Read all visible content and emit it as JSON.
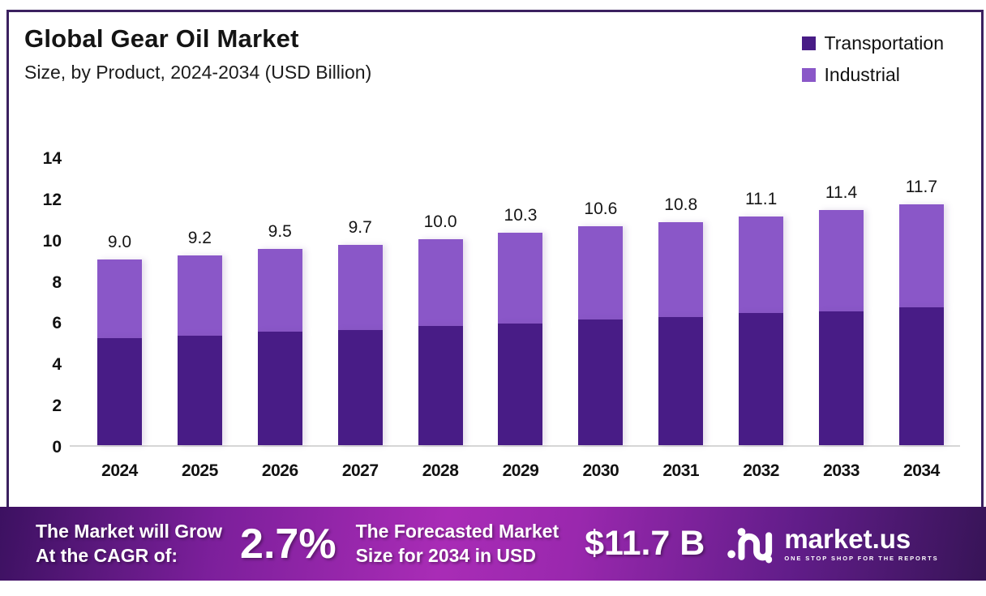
{
  "header": {
    "title": "Global Gear Oil Market",
    "subtitle": "Size, by Product, 2024-2034 (USD Billion)"
  },
  "legend": {
    "items": [
      {
        "label": "Transportation",
        "color": "#481c86"
      },
      {
        "label": "Industrial",
        "color": "#8a57c8"
      }
    ]
  },
  "chart_data": {
    "type": "bar",
    "stacked": true,
    "title": "Global Gear Oil Market",
    "subtitle": "Size, by Product, 2024-2034 (USD Billion)",
    "unit": "USD Billion",
    "categories": [
      "2024",
      "2025",
      "2026",
      "2027",
      "2028",
      "2029",
      "2030",
      "2031",
      "2032",
      "2033",
      "2034"
    ],
    "series": [
      {
        "name": "Transportation",
        "color": "#481c86",
        "values": [
          5.2,
          5.3,
          5.5,
          5.6,
          5.8,
          5.9,
          6.1,
          6.2,
          6.4,
          6.5,
          6.7
        ]
      },
      {
        "name": "Industrial",
        "color": "#8a57c8",
        "values": [
          3.8,
          3.9,
          4.0,
          4.1,
          4.2,
          4.4,
          4.5,
          4.6,
          4.7,
          4.9,
          5.0
        ]
      }
    ],
    "totals": [
      9.0,
      9.2,
      9.5,
      9.7,
      10.0,
      10.3,
      10.6,
      10.8,
      11.1,
      11.4,
      11.7
    ],
    "total_labels": [
      "9.0",
      "9.2",
      "9.5",
      "9.7",
      "10.0",
      "10.3",
      "10.6",
      "10.8",
      "11.1",
      "11.4",
      "11.7"
    ],
    "ylim": [
      0,
      14
    ],
    "yticks": [
      "0",
      "2",
      "4",
      "6",
      "8",
      "10",
      "12",
      "14"
    ],
    "grid": false,
    "legend_position": "top-right"
  },
  "footer": {
    "cagr_line1": "The Market will Grow",
    "cagr_line2": "At the CAGR of:",
    "cagr_value": "2.7%",
    "forecast_line1": "The Forecasted Market",
    "forecast_line2": "Size for 2034 in USD",
    "forecast_value": "$11.7 B",
    "logo_text": "market.us",
    "logo_tagline": "ONE STOP SHOP FOR THE REPORTS"
  }
}
